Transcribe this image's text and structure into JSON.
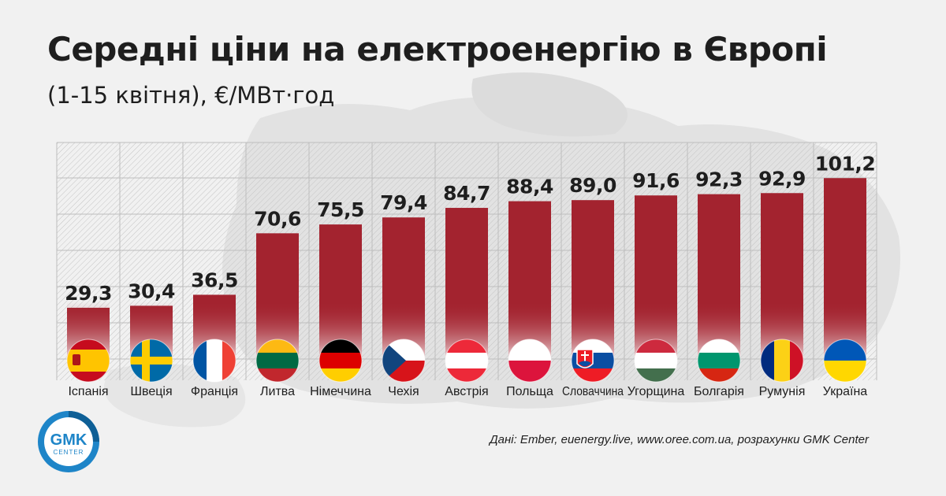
{
  "header": {
    "title": "Середні ціни на електроенергію в Європі",
    "subtitle": "(1-15 квітня), €/МВт·год"
  },
  "source": "Дані: Ember, euenergy.live, www.oree.com.ua, розрахунки GMK Center",
  "logo": {
    "line1": "GMK",
    "line2": "CENTER"
  },
  "colors": {
    "bar": "#a3232f",
    "text": "#1e1e1e",
    "logo": "#1e85c8"
  },
  "chart_data": {
    "type": "bar",
    "title": "Середні ціни на електроенергію в Європі",
    "subtitle": "(1-15 квітня), €/МВт·год",
    "categories": [
      "Іспанія",
      "Швеція",
      "Франція",
      "Литва",
      "Німеччина",
      "Чехія",
      "Австрія",
      "Польща",
      "Словаччина",
      "Угорщина",
      "Болгарія",
      "Румунія",
      "Україна"
    ],
    "value_labels": [
      "29,3",
      "30,4",
      "36,5",
      "70,6",
      "75,5",
      "79,4",
      "84,7",
      "88,4",
      "89,0",
      "91,6",
      "92,3",
      "92,9",
      "101,2"
    ],
    "values": [
      29.3,
      30.4,
      36.5,
      70.6,
      75.5,
      79.4,
      84.7,
      88.4,
      89.0,
      91.6,
      92.3,
      92.9,
      101.2
    ],
    "flags": [
      "spain-flag-icon",
      "sweden-flag-icon",
      "france-flag-icon",
      "lithuania-flag-icon",
      "germany-flag-icon",
      "czechia-flag-icon",
      "austria-flag-icon",
      "poland-flag-icon",
      "slovakia-flag-icon",
      "hungary-flag-icon",
      "bulgaria-flag-icon",
      "romania-flag-icon",
      "ukraine-flag-icon"
    ],
    "grid": true
  }
}
